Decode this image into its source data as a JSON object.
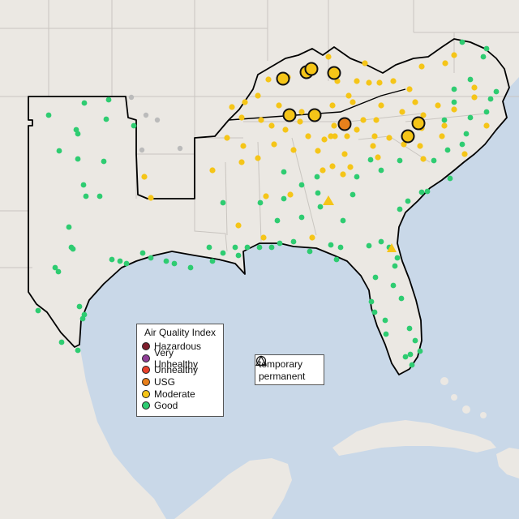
{
  "map": {
    "colors": {
      "ocean": "#c9d8e8",
      "land": "#ebe8e3",
      "state_border": "#c9c5c0",
      "region_outline": "#000000"
    }
  },
  "legend": {
    "title": "Air Quality Index",
    "categories": [
      {
        "label": "Hazardous",
        "color": "#7e1e2c"
      },
      {
        "label": "Very Unhealthy",
        "color": "#8f3f97"
      },
      {
        "label": "Unhealthy",
        "color": "#e8412b"
      },
      {
        "label": "USG",
        "color": "#e8801c"
      },
      {
        "label": "Moderate",
        "color": "#f5c518"
      },
      {
        "label": "Good",
        "color": "#2ecc71"
      }
    ]
  },
  "shape_legend": {
    "temporary": "temporary",
    "permanent": "permanent"
  },
  "monitors": {
    "colors": {
      "good": "#2ecc71",
      "moderate": "#f5c518",
      "usg": "#e8801c",
      "none": "#bbbbbb"
    }
  }
}
